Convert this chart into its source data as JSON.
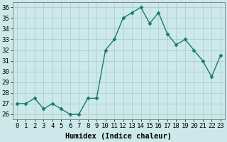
{
  "x": [
    0,
    1,
    2,
    3,
    4,
    5,
    6,
    7,
    8,
    9,
    10,
    11,
    12,
    13,
    14,
    15,
    16,
    17,
    18,
    19,
    20,
    21,
    22,
    23
  ],
  "y": [
    27.0,
    27.0,
    27.5,
    26.5,
    27.0,
    26.5,
    26.0,
    26.0,
    27.5,
    27.5,
    32.0,
    33.0,
    35.0,
    35.5,
    36.0,
    34.5,
    35.5,
    33.5,
    32.5,
    33.0,
    32.0,
    31.0,
    29.5,
    31.5
  ],
  "line_color": "#1a7a6e",
  "marker": "D",
  "bg_color": "#cce8e8",
  "grid_color": "#aacfcf",
  "xlabel": "Humidex (Indice chaleur)",
  "ylim": [
    25.5,
    36.5
  ],
  "xlim": [
    -0.5,
    23.5
  ],
  "yticks": [
    26,
    27,
    28,
    29,
    30,
    31,
    32,
    33,
    34,
    35,
    36
  ],
  "xticks": [
    0,
    1,
    2,
    3,
    4,
    5,
    6,
    7,
    8,
    9,
    10,
    11,
    12,
    13,
    14,
    15,
    16,
    17,
    18,
    19,
    20,
    21,
    22,
    23
  ],
  "xlabel_fontsize": 7.5,
  "tick_fontsize": 6.5,
  "line_width": 1.0,
  "marker_size": 2.5
}
